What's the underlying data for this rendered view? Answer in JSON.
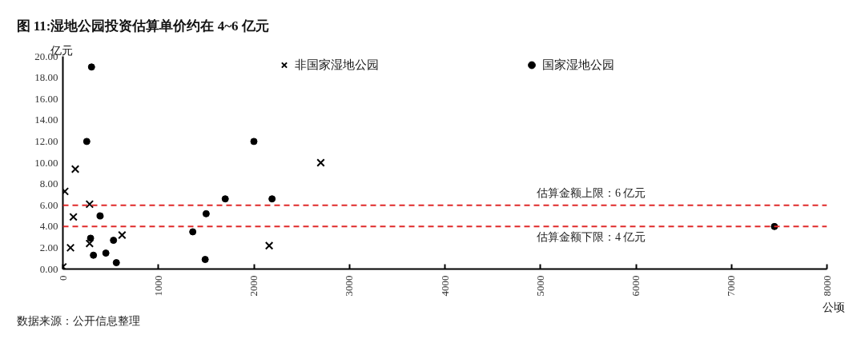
{
  "chart_data": {
    "type": "scatter",
    "title": "图 11:湿地公园投资估算单价约在 4~6 亿元",
    "xlabel": "公顷",
    "ylabel": "亿元",
    "xlim": [
      0,
      8000
    ],
    "ylim": [
      0,
      20
    ],
    "xticks": [
      0,
      1000,
      2000,
      3000,
      4000,
      5000,
      6000,
      7000,
      8000
    ],
    "yticks": [
      {
        "value": 0,
        "label": "0.00"
      },
      {
        "value": 2,
        "label": "2.00"
      },
      {
        "value": 4,
        "label": "4.00"
      },
      {
        "value": 6,
        "label": "6.00"
      },
      {
        "value": 8,
        "label": "8.00"
      },
      {
        "value": 10,
        "label": "10.00"
      },
      {
        "value": 12,
        "label": "12.00"
      },
      {
        "value": 14,
        "label": "14.00"
      },
      {
        "value": 16,
        "label": "16.00"
      },
      {
        "value": 18,
        "label": "18.00"
      },
      {
        "value": 20,
        "label": "20.00"
      }
    ],
    "grid": false,
    "legend": "top",
    "series": [
      {
        "name": "非国家湿地公园",
        "color": "#000000",
        "marker": "cross",
        "x": [
          0,
          20,
          130,
          110,
          80,
          280,
          280,
          620,
          2160,
          2700
        ],
        "values": [
          0.2,
          7.3,
          9.4,
          4.9,
          2.0,
          6.1,
          2.4,
          3.2,
          2.2,
          10.0
        ]
      },
      {
        "name": "国家湿地公园",
        "color": "#000000",
        "marker": "circle",
        "x": [
          300,
          250,
          290,
          320,
          390,
          450,
          530,
          560,
          1360,
          1500,
          1490,
          1700,
          2000,
          2190,
          7450
        ],
        "values": [
          19.0,
          12.0,
          2.9,
          1.3,
          5.0,
          1.5,
          2.7,
          0.6,
          3.5,
          5.2,
          0.9,
          6.6,
          12.0,
          6.6,
          4.0
        ]
      }
    ],
    "ref_lines": [
      {
        "axis": "y",
        "value": 6,
        "label": "估算金额上限：6 亿元",
        "color": "#e02a2a",
        "line_style": "dashed"
      },
      {
        "axis": "y",
        "value": 4,
        "label": "估算金额下限：4 亿元",
        "color": "#e02a2a",
        "line_style": "dashed"
      }
    ],
    "annotations": [
      "数据来源：公开信息整理"
    ]
  }
}
